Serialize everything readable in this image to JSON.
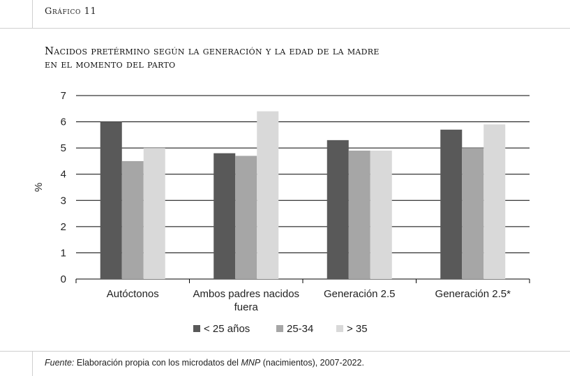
{
  "header": {
    "figure_label": "Gráfico 11"
  },
  "title_lines": [
    "Nacidos pretérmino según la generación y la edad de la madre",
    "en el momento del parto"
  ],
  "footer": {
    "source_label": "Fuente:",
    "source_text_1": "Elaboración propia con los microdatos del",
    "source_italic": "MNP",
    "source_text_2": "(nacimientos), 2007-2022."
  },
  "colors": {
    "series1": "#595959",
    "series2": "#a6a6a6",
    "series3": "#d9d9d9"
  },
  "chart_data": {
    "type": "bar",
    "title": "Nacidos pretérmino según la generación y la edad de la madre en el momento del parto",
    "ylabel": "%",
    "xlabel": "",
    "ylim": [
      0,
      7
    ],
    "yticks": [
      0,
      1,
      2,
      3,
      4,
      5,
      6,
      7
    ],
    "grid": true,
    "legend_position": "bottom",
    "categories": [
      [
        "Autóctonos"
      ],
      [
        "Ambos padres nacidos",
        "fuera"
      ],
      [
        "Generación 2.5"
      ],
      [
        "Generación 2.5*"
      ]
    ],
    "series": [
      {
        "name": "< 25 años",
        "values": [
          6.0,
          4.8,
          5.3,
          5.7
        ]
      },
      {
        "name": "25-34",
        "values": [
          4.5,
          4.7,
          4.9,
          5.0
        ]
      },
      {
        "name": "> 35",
        "values": [
          5.0,
          6.4,
          4.9,
          5.9
        ]
      }
    ]
  }
}
